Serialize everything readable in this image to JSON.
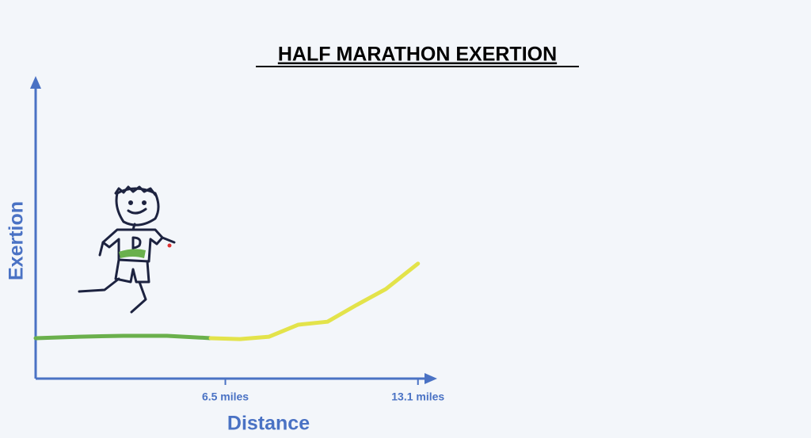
{
  "chart_data": {
    "type": "line",
    "title": "HALF MARATHON EXERTION",
    "x_label": "Distance",
    "y_label": "Exertion",
    "xlim": [
      0,
      13.65
    ],
    "ylim": [
      0,
      10
    ],
    "xticks": [
      {
        "value": 6.5,
        "label": "6.5 miles"
      },
      {
        "value": 13.1,
        "label": "13.1 miles"
      }
    ],
    "axis_color": "#4a72c4",
    "series": [
      {
        "color": "#6ab04c",
        "x": [
          0,
          1.5,
          3,
          4.5,
          6
        ],
        "values": [
          1.35,
          1.4,
          1.43,
          1.43,
          1.35
        ]
      },
      {
        "color": "#e3e34a",
        "x": [
          6,
          7,
          8,
          9,
          10,
          11,
          12,
          13.1
        ],
        "values": [
          1.35,
          1.32,
          1.4,
          1.8,
          1.9,
          2.46,
          2.99,
          3.84
        ]
      }
    ]
  }
}
